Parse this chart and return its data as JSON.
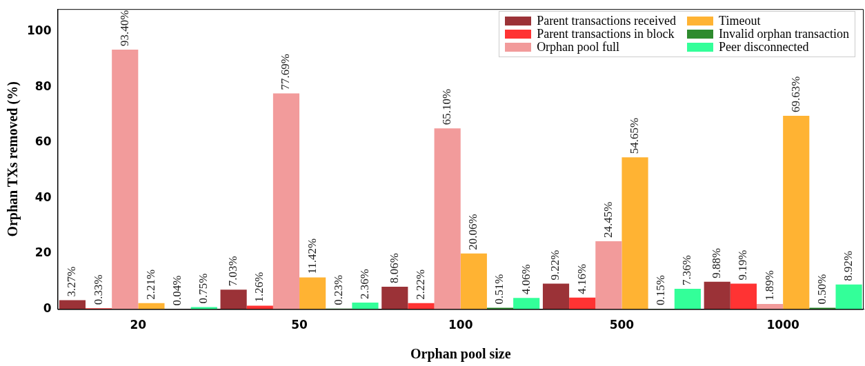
{
  "chart_data": {
    "type": "bar",
    "xlabel": "Orphan pool size",
    "ylabel": "Orphan TXs removed (%)",
    "categories": [
      "20",
      "50",
      "100",
      "500",
      "1000"
    ],
    "ylim": [
      0,
      108
    ],
    "yticks": [
      0,
      20,
      40,
      60,
      80,
      100
    ],
    "grid": false,
    "legend": "top right",
    "series": [
      {
        "name": "Parent transactions received",
        "color": "#9b3237",
        "values": [
          3.27,
          7.03,
          8.06,
          9.22,
          9.88
        ],
        "value_labels": [
          "3.27%",
          "7.03%",
          "8.06%",
          "9.22%",
          "9.88%"
        ]
      },
      {
        "name": "Parent transactions in block",
        "color": "#ff3333",
        "values": [
          0.33,
          1.26,
          2.22,
          4.16,
          9.19
        ],
        "value_labels": [
          "0.33%",
          "1.26%",
          "2.22%",
          "4.16%",
          "9.19%"
        ]
      },
      {
        "name": "Orphan pool full",
        "color": "#f29b9b",
        "values": [
          93.4,
          77.69,
          65.1,
          24.45,
          1.89
        ],
        "value_labels": [
          "93.40%",
          "77.69%",
          "65.10%",
          "24.45%",
          "1.89%"
        ]
      },
      {
        "name": "Timeout",
        "color": "#ffb333",
        "values": [
          2.21,
          11.42,
          20.06,
          54.65,
          69.63
        ],
        "value_labels": [
          "2.21%",
          "11.42%",
          "20.06%",
          "54.65%",
          "69.63%"
        ]
      },
      {
        "name": "Invalid orphan transaction",
        "color": "#2e8b2e",
        "values": [
          0.04,
          0.23,
          0.51,
          0.15,
          0.5
        ],
        "value_labels": [
          "0.04%",
          "0.23%",
          "0.51%",
          "0.15%",
          "0.50%"
        ]
      },
      {
        "name": "Peer disconnected",
        "color": "#33ff99",
        "values": [
          0.75,
          2.36,
          4.06,
          7.36,
          8.92
        ],
        "value_labels": [
          "0.75%",
          "2.36%",
          "4.06%",
          "7.36%",
          "8.92%"
        ]
      }
    ]
  }
}
